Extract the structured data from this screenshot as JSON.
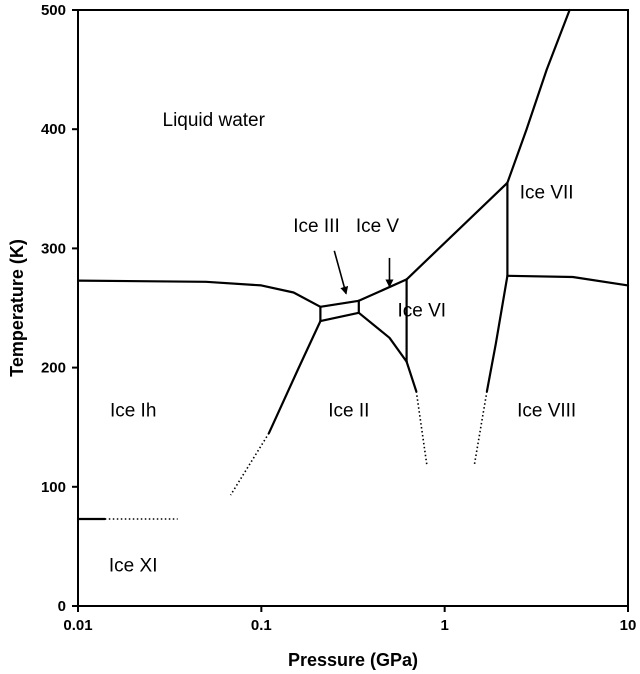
{
  "chart_data": {
    "type": "phase-diagram",
    "title": "",
    "xlabel": "Pressure (GPa)",
    "ylabel": "Temperature (K)",
    "x_scale": "log",
    "xlim": [
      0.01,
      10
    ],
    "ylim": [
      0,
      500
    ],
    "x_ticks": [
      0.01,
      0.1,
      1,
      10
    ],
    "x_tick_labels": [
      "0.01",
      "0.1",
      "1",
      "10"
    ],
    "y_ticks": [
      0,
      100,
      200,
      300,
      400,
      500
    ],
    "y_tick_labels": [
      "0",
      "100",
      "200",
      "300",
      "400",
      "500"
    ],
    "grid": false,
    "phases": [
      {
        "name": "Liquid water",
        "x": 0.055,
        "y": 407
      },
      {
        "name": "Ice Ih",
        "x": 0.02,
        "y": 163
      },
      {
        "name": "Ice XI",
        "x": 0.02,
        "y": 33
      },
      {
        "name": "Ice II",
        "x": 0.3,
        "y": 163
      },
      {
        "name": "Ice III",
        "x": 0.2,
        "y": 318
      },
      {
        "name": "Ice V",
        "x": 0.43,
        "y": 318
      },
      {
        "name": "Ice VI",
        "x": 0.75,
        "y": 247
      },
      {
        "name": "Ice VII",
        "x": 3.6,
        "y": 346
      },
      {
        "name": "Ice VIII",
        "x": 3.6,
        "y": 163
      }
    ],
    "boundaries": [
      {
        "style": "solid",
        "points": [
          [
            0.01,
            273
          ],
          [
            0.05,
            272
          ],
          [
            0.1,
            269
          ],
          [
            0.15,
            263
          ],
          [
            0.21,
            251
          ]
        ]
      },
      {
        "style": "solid",
        "points": [
          [
            0.21,
            251
          ],
          [
            0.34,
            256
          ]
        ]
      },
      {
        "style": "solid",
        "points": [
          [
            0.21,
            239
          ],
          [
            0.34,
            246
          ]
        ]
      },
      {
        "style": "solid",
        "points": [
          [
            0.21,
            251
          ],
          [
            0.21,
            239
          ]
        ]
      },
      {
        "style": "solid",
        "points": [
          [
            0.34,
            256
          ],
          [
            0.34,
            246
          ]
        ]
      },
      {
        "style": "solid",
        "points": [
          [
            0.34,
            256
          ],
          [
            0.62,
            274
          ]
        ]
      },
      {
        "style": "solid",
        "points": [
          [
            0.62,
            274
          ],
          [
            2.2,
            355
          ]
        ]
      },
      {
        "style": "solid",
        "points": [
          [
            2.2,
            355
          ],
          [
            2.8,
            400
          ],
          [
            3.6,
            450
          ],
          [
            4.8,
            500
          ]
        ]
      },
      {
        "style": "solid",
        "points": [
          [
            0.34,
            246
          ],
          [
            0.5,
            225
          ],
          [
            0.62,
            205
          ]
        ]
      },
      {
        "style": "solid",
        "points": [
          [
            0.62,
            274
          ],
          [
            0.62,
            205
          ]
        ]
      },
      {
        "style": "solid",
        "points": [
          [
            0.62,
            205
          ],
          [
            0.7,
            180
          ]
        ]
      },
      {
        "style": "dotted",
        "points": [
          [
            0.7,
            180
          ],
          [
            0.8,
            118
          ]
        ]
      },
      {
        "style": "solid",
        "points": [
          [
            0.21,
            239
          ],
          [
            0.16,
            200
          ],
          [
            0.11,
            145
          ]
        ]
      },
      {
        "style": "dotted",
        "points": [
          [
            0.11,
            145
          ],
          [
            0.068,
            93
          ]
        ]
      },
      {
        "style": "solid",
        "points": [
          [
            2.2,
            355
          ],
          [
            2.2,
            277
          ]
        ]
      },
      {
        "style": "solid",
        "points": [
          [
            2.2,
            277
          ],
          [
            5,
            276
          ],
          [
            10,
            269
          ]
        ]
      },
      {
        "style": "solid",
        "points": [
          [
            2.2,
            277
          ],
          [
            1.9,
            220
          ],
          [
            1.7,
            180
          ]
        ]
      },
      {
        "style": "dotted",
        "points": [
          [
            1.7,
            180
          ],
          [
            1.45,
            118
          ]
        ]
      },
      {
        "style": "solid",
        "points": [
          [
            0.01,
            73
          ],
          [
            0.014,
            73
          ]
        ]
      },
      {
        "style": "dotted",
        "points": [
          [
            0.014,
            73
          ],
          [
            0.035,
            73
          ]
        ]
      }
    ],
    "arrows": [
      {
        "from": [
          0.25,
          298
        ],
        "to": [
          0.29,
          262
        ]
      },
      {
        "from": [
          0.5,
          292
        ],
        "to": [
          0.5,
          268
        ]
      }
    ]
  }
}
